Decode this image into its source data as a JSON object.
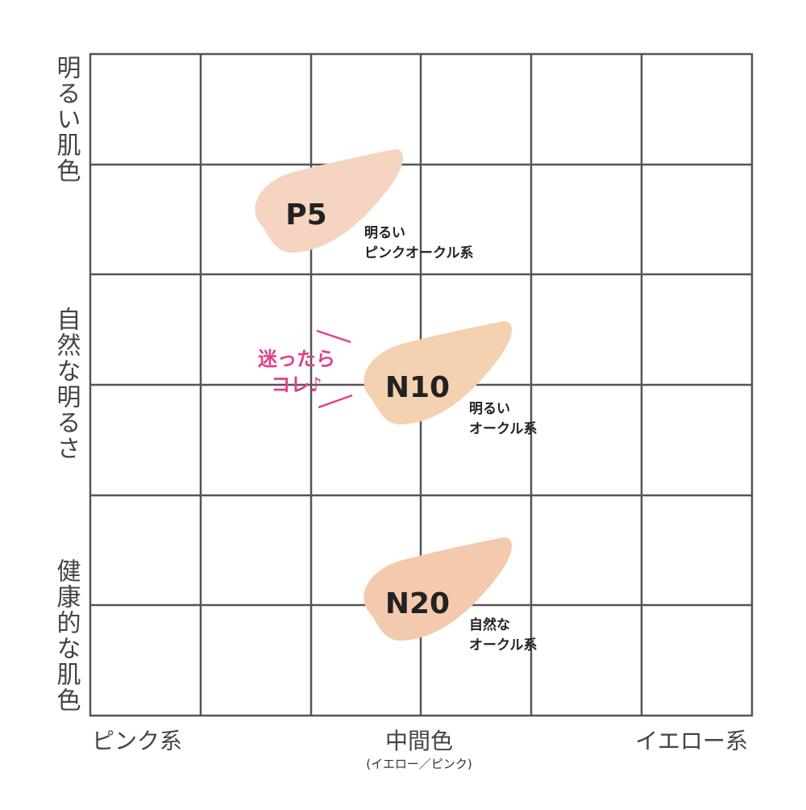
{
  "y_axis": {
    "labels": [
      "明るい肌色",
      "自然な明るさ",
      "健康的な肌色"
    ]
  },
  "x_axis": {
    "labels": [
      "ピンク系",
      "中間色",
      "イエロー系"
    ],
    "sublabel": "(イエロー／ピンク)"
  },
  "swatches": [
    {
      "name": "P5",
      "description": [
        "明るい",
        "ピンクオークル系"
      ]
    },
    {
      "name": "N10",
      "description": [
        "明るい",
        "オークル系"
      ]
    },
    {
      "name": "N20",
      "description": [
        "自然な",
        "オークル系"
      ]
    }
  ],
  "callout": [
    "迷ったら",
    "コレ♪"
  ]
}
